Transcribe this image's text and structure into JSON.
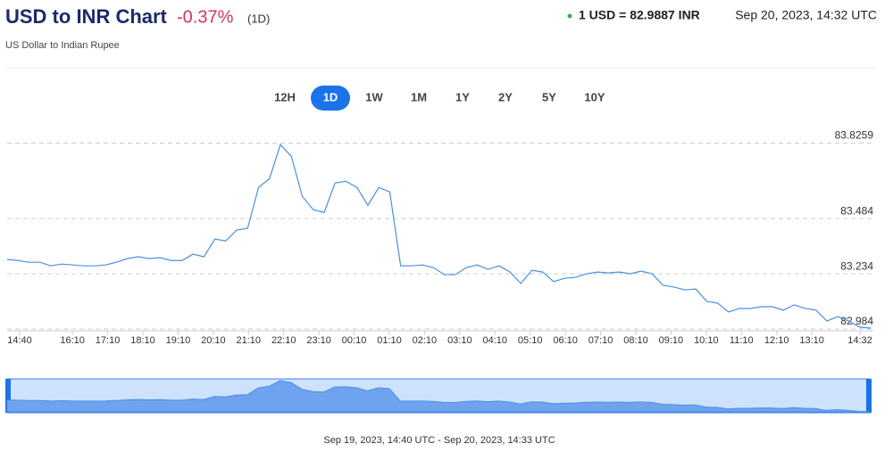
{
  "header": {
    "title": "USD to INR Chart",
    "change": "-0.37%",
    "period": "(1D)",
    "rate": "1 USD = 82.9887 INR",
    "timestamp": "Sep 20, 2023, 14:32 UTC",
    "subtitle": "US Dollar to Indian Rupee"
  },
  "ranges": {
    "buttons": [
      "12H",
      "1D",
      "1W",
      "1M",
      "1Y",
      "2Y",
      "5Y",
      "10Y"
    ],
    "active": "1D"
  },
  "chart_data": {
    "type": "line",
    "color": "#4a90e2",
    "xticks": [
      "14:40",
      "16:10",
      "17:10",
      "18:10",
      "19:10",
      "20:10",
      "21:10",
      "22:10",
      "23:10",
      "00:10",
      "01:10",
      "02:10",
      "03:10",
      "04:10",
      "05:10",
      "06:10",
      "07:10",
      "08:10",
      "09:10",
      "10:10",
      "11:10",
      "12:10",
      "13:10",
      "14:32"
    ],
    "values": [
      83.299,
      83.294,
      83.286,
      83.286,
      83.27,
      83.278,
      83.274,
      83.27,
      83.27,
      83.274,
      83.286,
      83.303,
      83.311,
      83.303,
      83.307,
      83.294,
      83.294,
      83.323,
      83.311,
      83.391,
      83.383,
      83.432,
      83.44,
      83.625,
      83.665,
      83.819,
      83.766,
      83.585,
      83.524,
      83.512,
      83.645,
      83.653,
      83.625,
      83.544,
      83.625,
      83.605,
      83.27,
      83.27,
      83.274,
      83.262,
      83.23,
      83.23,
      83.262,
      83.274,
      83.254,
      83.27,
      83.242,
      83.19,
      83.25,
      83.242,
      83.198,
      83.214,
      83.218,
      83.234,
      83.242,
      83.238,
      83.242,
      83.234,
      83.246,
      83.234,
      83.182,
      83.174,
      83.161,
      83.165,
      83.109,
      83.101,
      83.061,
      83.077,
      83.077,
      83.085,
      83.085,
      83.069,
      83.093,
      83.077,
      83.069,
      83.02,
      83.04,
      83.02,
      82.992,
      82.988
    ],
    "ylim": [
      82.98,
      83.84
    ],
    "yticks": [
      82.984,
      83.234,
      83.484,
      83.8259
    ],
    "grid": true
  },
  "navigator": {
    "range_label": "Sep 19, 2023, 14:40 UTC - Sep 20, 2023, 14:33 UTC"
  }
}
